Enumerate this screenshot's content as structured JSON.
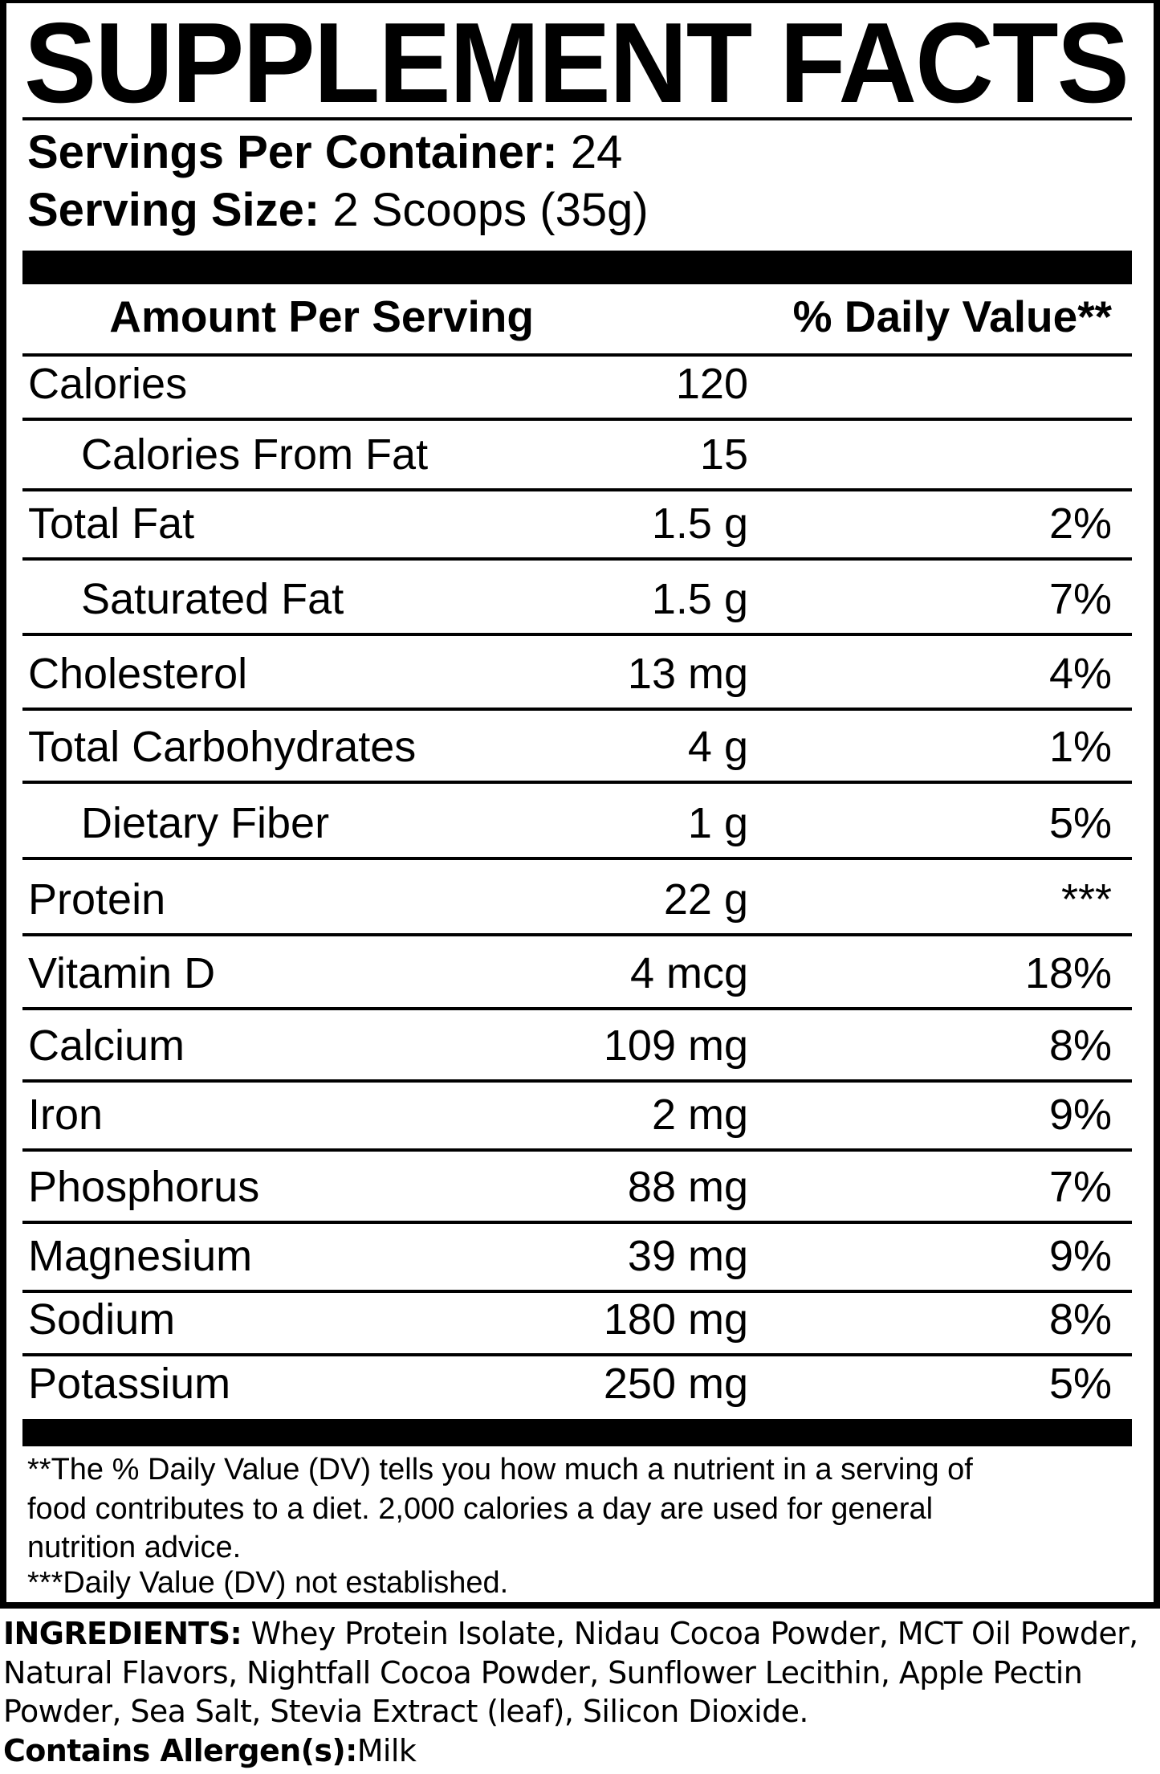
{
  "title": "SUPPLEMENT FACTS",
  "servings_per_container": {
    "label": "Servings Per Container:",
    "value": "24"
  },
  "serving_size": {
    "label": "Serving Size:",
    "value": "2 Scoops (35g)"
  },
  "columns": {
    "amount": "Amount Per Serving",
    "daily_value": "% Daily Value**"
  },
  "rows": [
    {
      "name": "Calories",
      "amount": "120",
      "dv": "",
      "indent": false
    },
    {
      "name": "Calories From Fat",
      "amount": "15",
      "dv": "",
      "indent": true
    },
    {
      "name": "Total Fat",
      "amount": "1.5 g",
      "dv": "2%",
      "indent": false
    },
    {
      "name": "Saturated Fat",
      "amount": "1.5 g",
      "dv": "7%",
      "indent": true
    },
    {
      "name": "Cholesterol",
      "amount": "13 mg",
      "dv": "4%",
      "indent": false
    },
    {
      "name": "Total Carbohydrates",
      "amount": "4 g",
      "dv": "1%",
      "indent": false
    },
    {
      "name": "Dietary Fiber",
      "amount": "1 g",
      "dv": "5%",
      "indent": true
    },
    {
      "name": "Protein",
      "amount": "22 g",
      "dv": "***",
      "indent": false
    },
    {
      "name": "Vitamin D",
      "amount": "4 mcg",
      "dv": "18%",
      "indent": false
    },
    {
      "name": "Calcium",
      "amount": "109 mg",
      "dv": "8%",
      "indent": false
    },
    {
      "name": "Iron",
      "amount": "2 mg",
      "dv": "9%",
      "indent": false
    },
    {
      "name": "Phosphorus",
      "amount": "88 mg",
      "dv": "7%",
      "indent": false
    },
    {
      "name": "Magnesium",
      "amount": "39 mg",
      "dv": "9%",
      "indent": false
    },
    {
      "name": "Sodium",
      "amount": "180 mg",
      "dv": "8%",
      "indent": false
    },
    {
      "name": "Potassium",
      "amount": "250 mg",
      "dv": "5%",
      "indent": false
    }
  ],
  "footnotes": [
    "**The % Daily Value (DV) tells you how much a nutrient in a serving of",
    "food contributes to a diet. 2,000 calories a day are used for general",
    "nutrition advice.",
    "***Daily Value (DV) not established."
  ],
  "ingredients": {
    "label": "INGREDIENTS:",
    "text": "Whey Protein Isolate, Nidau Cocoa Powder, MCT Oil Powder, Natural Flavors, Nightfall Cocoa Powder, Sunflower Lecithin, Apple Pectin Powder, Sea Salt, Stevia Extract (leaf), Silicon Dioxide."
  },
  "allergens": {
    "label": "Contains Allergen(s):",
    "text": "Milk"
  }
}
